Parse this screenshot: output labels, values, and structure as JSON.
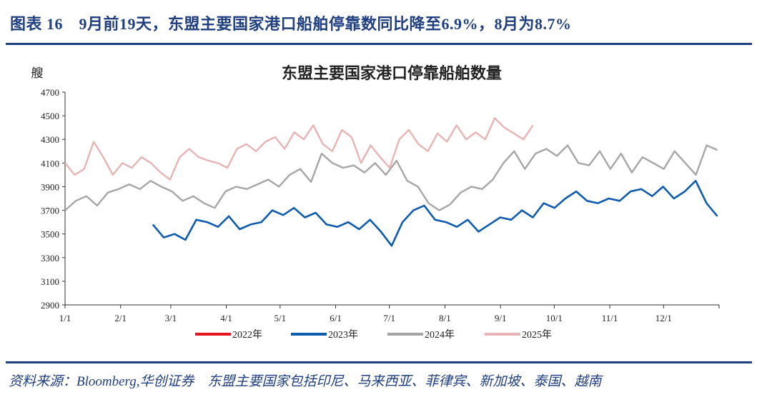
{
  "figure_title": "图表 16　9月前19天，东盟主要国家港口船舶停靠数同比降至6.9%，8月为8.7%",
  "source": "资料来源：Bloomberg,华创证券　东盟主要国家包括印尼、马来西亚、菲律宾、新加坡、泰国、越南",
  "chart_data": {
    "type": "line",
    "title": "东盟主要国家港口停靠船舶数量",
    "ylabel": "艘",
    "xlabel": "",
    "ylim": [
      2900,
      4700
    ],
    "yticks": [
      "4700",
      "4500",
      "4300",
      "4100",
      "3900",
      "3700",
      "3500",
      "3300",
      "3100",
      "2900"
    ],
    "xticks": [
      "1/1",
      "2/1",
      "3/1",
      "4/1",
      "5/1",
      "6/1",
      "7/1",
      "8/1",
      "9/1",
      "10/1",
      "11/1",
      "12/1"
    ],
    "x_unit": "week of year (0-52)",
    "legend_position": "bottom",
    "series": [
      {
        "name": "2022年",
        "color": "#e3141b",
        "start_week": 0,
        "values": []
      },
      {
        "name": "2023年",
        "color": "#0e5cb0",
        "start_week": 7,
        "values": [
          3580,
          3470,
          3500,
          3450,
          3620,
          3600,
          3560,
          3650,
          3540,
          3580,
          3600,
          3700,
          3660,
          3720,
          3640,
          3680,
          3580,
          3560,
          3600,
          3540,
          3620,
          3520,
          3400,
          3600,
          3700,
          3740,
          3620,
          3600,
          3560,
          3620,
          3520,
          3580,
          3640,
          3620,
          3700,
          3640,
          3760,
          3720,
          3800,
          3860,
          3780,
          3760,
          3800,
          3780,
          3860,
          3880,
          3820,
          3900,
          3800,
          3860,
          3950,
          3760,
          3650
        ]
      },
      {
        "name": "2024年",
        "color": "#a6a6a6",
        "start_week": 0,
        "values": [
          3700,
          3780,
          3820,
          3740,
          3850,
          3880,
          3920,
          3880,
          3950,
          3900,
          3860,
          3780,
          3820,
          3760,
          3720,
          3860,
          3900,
          3880,
          3920,
          3960,
          3900,
          4000,
          4050,
          3940,
          4180,
          4100,
          4060,
          4080,
          4020,
          4100,
          4000,
          4120,
          3950,
          3900,
          3760,
          3700,
          3750,
          3850,
          3900,
          3880,
          3960,
          4100,
          4200,
          4050,
          4180,
          4220,
          4160,
          4250,
          4100,
          4080,
          4200,
          4050,
          4180,
          4020,
          4150,
          4100,
          4050,
          4200,
          4100,
          4000,
          4250,
          4210
        ]
      },
      {
        "name": "2025年",
        "color": "#e8b3b3",
        "start_week": 0,
        "values": [
          4100,
          4000,
          4050,
          4280,
          4150,
          4000,
          4100,
          4060,
          4150,
          4100,
          4020,
          3960,
          4150,
          4220,
          4150,
          4120,
          4100,
          4060,
          4220,
          4260,
          4200,
          4280,
          4320,
          4220,
          4360,
          4300,
          4420,
          4260,
          4200,
          4380,
          4320,
          4100,
          4250,
          4150,
          4060,
          4300,
          4380,
          4260,
          4200,
          4350,
          4280,
          4420,
          4300,
          4360,
          4300,
          4480,
          4400,
          4350,
          4300,
          4420
        ]
      }
    ]
  }
}
